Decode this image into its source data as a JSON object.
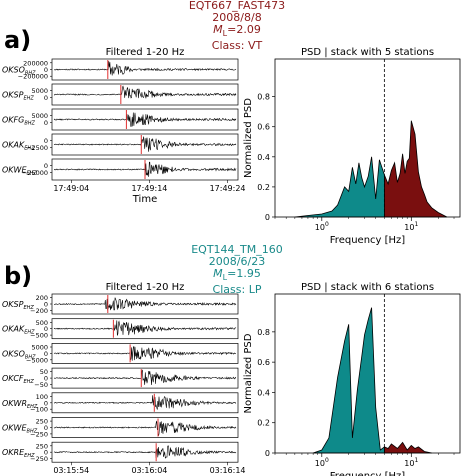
{
  "panels": [
    {
      "letter": "a)",
      "event_id": "EQT667_FAST473",
      "date": "2008/8/8",
      "magnitude": "=2.09",
      "class_label": "Class: VT",
      "header_color": "#8b1a1a",
      "fill_low": "#0e8a8a",
      "fill_high": "#7a0f0f"
    },
    {
      "letter": "b)",
      "event_id": "EQT144_TM_160",
      "date": "2008/6/23",
      "magnitude": "=1.95",
      "class_label": "Class: LP",
      "header_color": "#1a8a8a",
      "fill_low": "#0e8a8a",
      "fill_high": "#7a0f0f"
    }
  ],
  "chart_data": [
    {
      "type": "line",
      "title": "Filtered 1-20 Hz",
      "xlabel": "Time",
      "x_ticks": [
        "17:49:04",
        "17:49:14",
        "17:49:24"
      ],
      "traces": [
        {
          "station": "OKSO",
          "comp": "BHZ",
          "ticks": [
            "200000",
            "0",
            "−200000"
          ],
          "pick": 0.3,
          "onset": 0.3,
          "decay": 0.16
        },
        {
          "station": "OKSP",
          "comp": "EHZ",
          "ticks": [
            "5000",
            "0"
          ],
          "pick": 0.37,
          "onset": 0.37,
          "decay": 0.25
        },
        {
          "station": "OKFG",
          "comp": "BHZ",
          "ticks": [
            "5000",
            "0"
          ],
          "pick": 0.4,
          "onset": 0.4,
          "decay": 0.25
        },
        {
          "station": "OKAK",
          "comp": "EHZ",
          "ticks": [
            "0",
            "−2500"
          ],
          "pick": 0.48,
          "onset": 0.48,
          "decay": 0.22
        },
        {
          "station": "OKWE",
          "comp": "EHZ",
          "ticks": [
            "0",
            "−25000"
          ],
          "pick": 0.5,
          "onset": 0.5,
          "decay": 0.2
        }
      ]
    },
    {
      "type": "area",
      "title": "PSD | stack with 5 stations",
      "xlabel": "Frequency [Hz]",
      "ylabel": "Normalized PSD",
      "log_x": true,
      "xlim": [
        0.3,
        35
      ],
      "ylim": [
        0,
        1.05
      ],
      "y_ticks": [
        0,
        0.2,
        0.4,
        0.6,
        0.8
      ],
      "x_ticks": [
        {
          "value": 1,
          "base": "10",
          "exp": "0"
        },
        {
          "value": 10,
          "base": "10",
          "exp": "1"
        }
      ],
      "threshold_hz": 5,
      "x": [
        0.5,
        0.7,
        1.0,
        1.3,
        1.5,
        1.8,
        2.0,
        2.2,
        2.4,
        2.6,
        2.8,
        3.0,
        3.3,
        3.6,
        4.0,
        4.4,
        5.0,
        5.5,
        6.0,
        6.5,
        7.0,
        7.5,
        8.0,
        8.5,
        9.0,
        9.5,
        10.0,
        11.0,
        12.0,
        13.0,
        14.0,
        15.0,
        17.0,
        20.0,
        25.0
      ],
      "y": [
        0.0,
        0.01,
        0.02,
        0.04,
        0.08,
        0.2,
        0.17,
        0.33,
        0.22,
        0.36,
        0.26,
        0.2,
        0.27,
        0.4,
        0.12,
        0.38,
        0.28,
        0.22,
        0.31,
        0.36,
        0.23,
        0.29,
        0.42,
        0.29,
        0.37,
        0.39,
        0.64,
        0.55,
        0.3,
        0.2,
        0.15,
        0.1,
        0.06,
        0.03,
        0.0
      ]
    },
    {
      "type": "line",
      "title": "Filtered 1-20 Hz",
      "xlabel": "Time",
      "x_ticks": [
        "03:15:54",
        "03:16:04",
        "03:16:14"
      ],
      "traces": [
        {
          "station": "OKSP",
          "comp": "EHZ",
          "ticks": [
            "200",
            "0",
            "−200"
          ],
          "pick": 0.3,
          "onset": 0.28,
          "decay": 0.3
        },
        {
          "station": "OKAK",
          "comp": "EHZ",
          "ticks": [
            "500",
            "0",
            "−500"
          ],
          "pick": 0.33,
          "onset": 0.33,
          "decay": 0.3
        },
        {
          "station": "OKSO",
          "comp": "BHZ",
          "ticks": [
            "5000",
            "0",
            "−5000"
          ],
          "pick": 0.42,
          "onset": 0.42,
          "decay": 0.3
        },
        {
          "station": "OKCF",
          "comp": "EHZ",
          "ticks": [
            "50",
            "0",
            "−50"
          ],
          "pick": 0.48,
          "onset": 0.48,
          "decay": 0.3
        },
        {
          "station": "OKWR",
          "comp": "EHZ",
          "ticks": [
            "100",
            "0",
            "−100"
          ],
          "pick": 0.55,
          "onset": 0.54,
          "decay": 0.3
        },
        {
          "station": "OKWE",
          "comp": "BHZ",
          "ticks": [
            "250",
            "0",
            "−250"
          ],
          "pick": 0.57,
          "onset": 0.56,
          "decay": 0.3
        },
        {
          "station": "OKRE",
          "comp": "EHZ",
          "ticks": [
            "250",
            "0",
            "−250"
          ],
          "pick": 0.56,
          "onset": 0.56,
          "decay": 0.3
        }
      ]
    },
    {
      "type": "area",
      "title": "PSD | stack with 6 stations",
      "xlabel": "Frequency [Hz]",
      "ylabel": "Normalized PSD",
      "log_x": true,
      "xlim": [
        0.3,
        35
      ],
      "ylim": [
        0,
        1.05
      ],
      "y_ticks": [
        0,
        0.2,
        0.4,
        0.6,
        0.8
      ],
      "x_ticks": [
        {
          "value": 1,
          "base": "10",
          "exp": "0"
        },
        {
          "value": 10,
          "base": "10",
          "exp": "1"
        }
      ],
      "threshold_hz": 5,
      "x": [
        0.8,
        1.0,
        1.2,
        1.5,
        1.8,
        2.0,
        2.2,
        2.5,
        2.8,
        3.0,
        3.3,
        3.6,
        4.0,
        4.5,
        5.0,
        5.5,
        6.0,
        7.0,
        8.0,
        9.0,
        10.0,
        11.0,
        12.0,
        14.0,
        17.0
      ],
      "y": [
        0.0,
        0.02,
        0.1,
        0.5,
        0.74,
        0.85,
        0.1,
        0.42,
        0.64,
        0.78,
        0.88,
        0.96,
        0.3,
        0.02,
        0.04,
        0.03,
        0.06,
        0.03,
        0.07,
        0.02,
        0.05,
        0.03,
        0.04,
        0.01,
        0.0
      ]
    }
  ]
}
